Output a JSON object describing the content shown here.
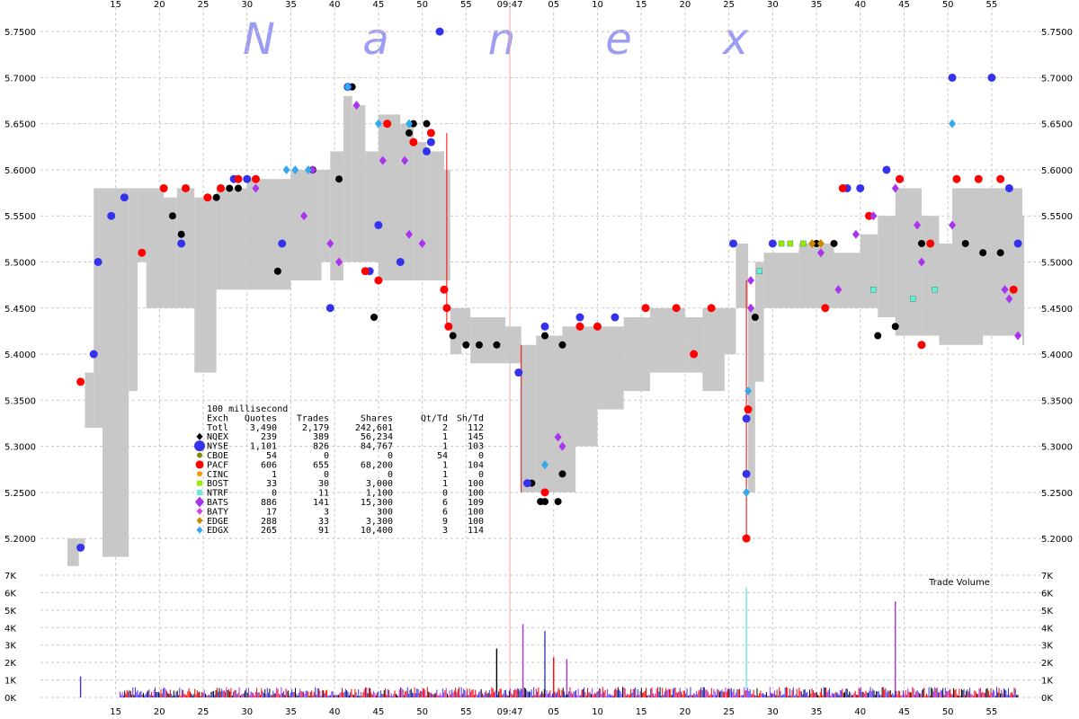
{
  "watermark": [
    "N",
    "a",
    "n",
    "e",
    "x"
  ],
  "legend": {
    "interval": "100 millisecond",
    "columns": [
      "Exch",
      "Quotes",
      "Trades",
      "Shares",
      "Qt/Td",
      "Sh/Td"
    ],
    "rows": [
      {
        "exch": "Totl",
        "quotes": "3,490",
        "trades": "2,179",
        "shares": "242,601",
        "qt_td": "2",
        "sh_td": "112",
        "color": "",
        "marker": "none"
      },
      {
        "exch": "NQEX",
        "quotes": "239",
        "trades": "389",
        "shares": "56,234",
        "qt_td": "1",
        "sh_td": "145",
        "color": "#000000",
        "marker": "diamond-small"
      },
      {
        "exch": "NYSE",
        "quotes": "1,101",
        "trades": "826",
        "shares": "84,767",
        "qt_td": "1",
        "sh_td": "103",
        "color": "#3333ee",
        "marker": "circle-large"
      },
      {
        "exch": "CBOE",
        "quotes": "54",
        "trades": "0",
        "shares": "0",
        "qt_td": "54",
        "sh_td": "0",
        "color": "#888800",
        "marker": "circle-small"
      },
      {
        "exch": "PACF",
        "quotes": "606",
        "trades": "655",
        "shares": "68,200",
        "qt_td": "1",
        "sh_td": "104",
        "color": "#ff0000",
        "marker": "circle"
      },
      {
        "exch": "CINC",
        "quotes": "1",
        "trades": "0",
        "shares": "0",
        "qt_td": "1",
        "sh_td": "0",
        "color": "#ff9900",
        "marker": "circle-small"
      },
      {
        "exch": "BOST",
        "quotes": "33",
        "trades": "30",
        "shares": "3,000",
        "qt_td": "1",
        "sh_td": "100",
        "color": "#99ee00",
        "marker": "square"
      },
      {
        "exch": "NTRF",
        "quotes": "0",
        "trades": "11",
        "shares": "1,100",
        "qt_td": "0",
        "sh_td": "100",
        "color": "#66eedd",
        "marker": "square"
      },
      {
        "exch": "BATS",
        "quotes": "886",
        "trades": "141",
        "shares": "15,300",
        "qt_td": "6",
        "sh_td": "109",
        "color": "#aa33ee",
        "marker": "diamond"
      },
      {
        "exch": "BATY",
        "quotes": "17",
        "trades": "3",
        "shares": "300",
        "qt_td": "6",
        "sh_td": "100",
        "color": "#dd44dd",
        "marker": "diamond-small"
      },
      {
        "exch": "EDGE",
        "quotes": "288",
        "trades": "33",
        "shares": "3,300",
        "qt_td": "9",
        "sh_td": "100",
        "color": "#cc8800",
        "marker": "diamond-small"
      },
      {
        "exch": "EDGX",
        "quotes": "265",
        "trades": "91",
        "shares": "10,400",
        "qt_td": "3",
        "sh_td": "114",
        "color": "#33aaee",
        "marker": "diamond-small"
      }
    ]
  },
  "chart_data": {
    "type": "scatter",
    "x_unit": "seconds from 09:46:00",
    "x_range": [
      9.5,
      118.5
    ],
    "x_ticks": [
      {
        "t": 15,
        "label": "15"
      },
      {
        "t": 20,
        "label": "20"
      },
      {
        "t": 25,
        "label": "25"
      },
      {
        "t": 30,
        "label": "30"
      },
      {
        "t": 35,
        "label": "35"
      },
      {
        "t": 40,
        "label": "40"
      },
      {
        "t": 45,
        "label": "45"
      },
      {
        "t": 50,
        "label": "50"
      },
      {
        "t": 55,
        "label": "55"
      },
      {
        "t": 60,
        "label": "09:47"
      },
      {
        "t": 65,
        "label": "05"
      },
      {
        "t": 70,
        "label": "10"
      },
      {
        "t": 75,
        "label": "15"
      },
      {
        "t": 80,
        "label": "20"
      },
      {
        "t": 85,
        "label": "25"
      },
      {
        "t": 90,
        "label": "30"
      },
      {
        "t": 95,
        "label": "35"
      },
      {
        "t": 100,
        "label": "40"
      },
      {
        "t": 105,
        "label": "45"
      },
      {
        "t": 110,
        "label": "50"
      },
      {
        "t": 115,
        "label": "55"
      }
    ],
    "price_axis": {
      "range": [
        5.165,
        5.755
      ],
      "ticks": [
        "5.2000",
        "5.2500",
        "5.3000",
        "5.3500",
        "5.4000",
        "5.4500",
        "5.5000",
        "5.5500",
        "5.6000",
        "5.6500",
        "5.7000",
        "5.7500"
      ]
    },
    "volume_axis": {
      "title": "Trade Volume",
      "range": [
        0,
        7000
      ],
      "ticks": [
        "0K",
        "1K",
        "2K",
        "3K",
        "4K",
        "5K",
        "6K",
        "7K"
      ]
    },
    "grid": true,
    "nbbo_band": [
      {
        "t": 9.5,
        "lo": 5.17,
        "hi": 5.2
      },
      {
        "t": 10.8,
        "lo": 5.19,
        "hi": 5.2
      },
      {
        "t": 11.5,
        "lo": 5.32,
        "hi": 5.38
      },
      {
        "t": 12.5,
        "lo": 5.32,
        "hi": 5.58
      },
      {
        "t": 13.5,
        "lo": 5.18,
        "hi": 5.58
      },
      {
        "t": 16.5,
        "lo": 5.36,
        "hi": 5.58
      },
      {
        "t": 17.5,
        "lo": 5.5,
        "hi": 5.58
      },
      {
        "t": 18.5,
        "lo": 5.45,
        "hi": 5.58
      },
      {
        "t": 20.5,
        "lo": 5.45,
        "hi": 5.57
      },
      {
        "t": 22.0,
        "lo": 5.45,
        "hi": 5.58
      },
      {
        "t": 24.0,
        "lo": 5.38,
        "hi": 5.57
      },
      {
        "t": 26.5,
        "lo": 5.47,
        "hi": 5.58
      },
      {
        "t": 30.0,
        "lo": 5.47,
        "hi": 5.59
      },
      {
        "t": 33.0,
        "lo": 5.47,
        "hi": 5.59
      },
      {
        "t": 35.0,
        "lo": 5.48,
        "hi": 5.6
      },
      {
        "t": 38.5,
        "lo": 5.5,
        "hi": 5.6
      },
      {
        "t": 39.5,
        "lo": 5.48,
        "hi": 5.62
      },
      {
        "t": 41.0,
        "lo": 5.5,
        "hi": 5.68
      },
      {
        "t": 42.0,
        "lo": 5.5,
        "hi": 5.67
      },
      {
        "t": 43.5,
        "lo": 5.5,
        "hi": 5.62
      },
      {
        "t": 45.0,
        "lo": 5.48,
        "hi": 5.66
      },
      {
        "t": 47.5,
        "lo": 5.48,
        "hi": 5.65
      },
      {
        "t": 49.0,
        "lo": 5.48,
        "hi": 5.63
      },
      {
        "t": 50.5,
        "lo": 5.48,
        "hi": 5.62
      },
      {
        "t": 52.5,
        "lo": 5.48,
        "hi": 5.6
      },
      {
        "t": 53.2,
        "lo": 5.4,
        "hi": 5.45
      },
      {
        "t": 54.5,
        "lo": 5.41,
        "hi": 5.45
      },
      {
        "t": 55.5,
        "lo": 5.39,
        "hi": 5.44
      },
      {
        "t": 59.5,
        "lo": 5.39,
        "hi": 5.43
      },
      {
        "t": 61.3,
        "lo": 5.25,
        "hi": 5.41
      },
      {
        "t": 63.0,
        "lo": 5.25,
        "hi": 5.42
      },
      {
        "t": 66.0,
        "lo": 5.25,
        "hi": 5.43
      },
      {
        "t": 67.5,
        "lo": 5.3,
        "hi": 5.43
      },
      {
        "t": 70.0,
        "lo": 5.34,
        "hi": 5.43
      },
      {
        "t": 73.0,
        "lo": 5.36,
        "hi": 5.44
      },
      {
        "t": 76.0,
        "lo": 5.38,
        "hi": 5.45
      },
      {
        "t": 80.0,
        "lo": 5.38,
        "hi": 5.44
      },
      {
        "t": 82.0,
        "lo": 5.36,
        "hi": 5.45
      },
      {
        "t": 84.5,
        "lo": 5.4,
        "hi": 5.45
      },
      {
        "t": 85.8,
        "lo": 5.45,
        "hi": 5.52
      },
      {
        "t": 87.2,
        "lo": 5.25,
        "hi": 5.45
      },
      {
        "t": 88.0,
        "lo": 5.37,
        "hi": 5.5
      },
      {
        "t": 89.0,
        "lo": 5.45,
        "hi": 5.51
      },
      {
        "t": 93.0,
        "lo": 5.45,
        "hi": 5.52
      },
      {
        "t": 97.0,
        "lo": 5.45,
        "hi": 5.51
      },
      {
        "t": 100.0,
        "lo": 5.45,
        "hi": 5.53
      },
      {
        "t": 102.0,
        "lo": 5.44,
        "hi": 5.55
      },
      {
        "t": 104.0,
        "lo": 5.42,
        "hi": 5.58
      },
      {
        "t": 107.0,
        "lo": 5.42,
        "hi": 5.55
      },
      {
        "t": 109.0,
        "lo": 5.41,
        "hi": 5.52
      },
      {
        "t": 110.5,
        "lo": 5.41,
        "hi": 5.58
      },
      {
        "t": 114.0,
        "lo": 5.42,
        "hi": 5.58
      },
      {
        "t": 118.5,
        "lo": 5.41,
        "hi": 5.55
      }
    ],
    "series": [
      {
        "name": "NQEX",
        "color": "#000000",
        "marker": "dot",
        "points": [
          [
            21.5,
            5.55
          ],
          [
            22.5,
            5.53
          ],
          [
            26.5,
            5.57
          ],
          [
            28.0,
            5.58
          ],
          [
            29.0,
            5.58
          ],
          [
            33.5,
            5.49
          ],
          [
            37.5,
            5.6
          ],
          [
            40.5,
            5.59
          ],
          [
            42.0,
            5.69
          ],
          [
            44.5,
            5.44
          ],
          [
            48.5,
            5.64
          ],
          [
            49.0,
            5.65
          ],
          [
            50.5,
            5.65
          ],
          [
            53.5,
            5.42
          ],
          [
            55.0,
            5.41
          ],
          [
            56.5,
            5.41
          ],
          [
            58.5,
            5.41
          ],
          [
            62.5,
            5.26
          ],
          [
            63.5,
            5.24
          ],
          [
            64.0,
            5.24
          ],
          [
            65.5,
            5.24
          ],
          [
            66.0,
            5.27
          ],
          [
            64.0,
            5.42
          ],
          [
            66.0,
            5.41
          ],
          [
            88.0,
            5.44
          ],
          [
            90.0,
            5.52
          ],
          [
            95.0,
            5.52
          ],
          [
            97.0,
            5.52
          ],
          [
            102.0,
            5.42
          ],
          [
            104.0,
            5.43
          ],
          [
            107.0,
            5.52
          ],
          [
            112.0,
            5.52
          ],
          [
            114.0,
            5.51
          ],
          [
            116.0,
            5.51
          ]
        ]
      },
      {
        "name": "NYSE",
        "color": "#3333ee",
        "marker": "circle",
        "points": [
          [
            11.0,
            5.19
          ],
          [
            12.5,
            5.4
          ],
          [
            13.0,
            5.5
          ],
          [
            14.5,
            5.55
          ],
          [
            16.0,
            5.57
          ],
          [
            22.5,
            5.52
          ],
          [
            28.5,
            5.59
          ],
          [
            30.0,
            5.59
          ],
          [
            34.0,
            5.52
          ],
          [
            39.5,
            5.45
          ],
          [
            41.5,
            5.69
          ],
          [
            44.0,
            5.49
          ],
          [
            45.0,
            5.54
          ],
          [
            47.5,
            5.5
          ],
          [
            50.5,
            5.62
          ],
          [
            51.0,
            5.63
          ],
          [
            52.0,
            5.75
          ],
          [
            61.0,
            5.38
          ],
          [
            62.0,
            5.26
          ],
          [
            64.0,
            5.43
          ],
          [
            68.0,
            5.44
          ],
          [
            72.0,
            5.44
          ],
          [
            85.5,
            5.52
          ],
          [
            87.0,
            5.27
          ],
          [
            87.0,
            5.33
          ],
          [
            90.0,
            5.52
          ],
          [
            98.5,
            5.58
          ],
          [
            100.0,
            5.58
          ],
          [
            103.0,
            5.6
          ],
          [
            104.5,
            5.59
          ],
          [
            110.5,
            5.7
          ],
          [
            115.0,
            5.7
          ],
          [
            117.0,
            5.58
          ],
          [
            118.0,
            5.52
          ]
        ]
      },
      {
        "name": "PACF",
        "color": "#ff0000",
        "marker": "circle",
        "points": [
          [
            11.0,
            5.37
          ],
          [
            18.0,
            5.51
          ],
          [
            20.5,
            5.58
          ],
          [
            23.0,
            5.58
          ],
          [
            25.5,
            5.57
          ],
          [
            27.0,
            5.58
          ],
          [
            29.0,
            5.59
          ],
          [
            31.0,
            5.59
          ],
          [
            43.5,
            5.49
          ],
          [
            45.0,
            5.48
          ],
          [
            46.0,
            5.65
          ],
          [
            49.0,
            5.63
          ],
          [
            51.0,
            5.64
          ],
          [
            52.5,
            5.47
          ],
          [
            52.8,
            5.45
          ],
          [
            53.0,
            5.43
          ],
          [
            64.0,
            5.25
          ],
          [
            68.0,
            5.43
          ],
          [
            70.0,
            5.43
          ],
          [
            75.5,
            5.45
          ],
          [
            79.0,
            5.45
          ],
          [
            81.0,
            5.4
          ],
          [
            83.0,
            5.45
          ],
          [
            87.0,
            5.2
          ],
          [
            87.2,
            5.34
          ],
          [
            96.0,
            5.45
          ],
          [
            98.0,
            5.58
          ],
          [
            101.0,
            5.55
          ],
          [
            104.5,
            5.59
          ],
          [
            107.0,
            5.41
          ],
          [
            108.0,
            5.52
          ],
          [
            111.0,
            5.59
          ],
          [
            113.5,
            5.59
          ],
          [
            116.0,
            5.59
          ],
          [
            117.5,
            5.47
          ]
        ]
      },
      {
        "name": "BATS",
        "color": "#aa33ee",
        "marker": "diamond",
        "points": [
          [
            31.0,
            5.58
          ],
          [
            36.5,
            5.55
          ],
          [
            37.5,
            5.6
          ],
          [
            39.5,
            5.52
          ],
          [
            40.5,
            5.5
          ],
          [
            42.5,
            5.67
          ],
          [
            45.5,
            5.61
          ],
          [
            48.0,
            5.61
          ],
          [
            48.5,
            5.53
          ],
          [
            50.0,
            5.52
          ],
          [
            65.5,
            5.31
          ],
          [
            66.0,
            5.3
          ],
          [
            87.5,
            5.45
          ],
          [
            87.5,
            5.48
          ],
          [
            95.5,
            5.51
          ],
          [
            97.5,
            5.47
          ],
          [
            99.5,
            5.53
          ],
          [
            101.5,
            5.55
          ],
          [
            104.0,
            5.58
          ],
          [
            106.5,
            5.54
          ],
          [
            107.0,
            5.5
          ],
          [
            110.5,
            5.54
          ],
          [
            116.5,
            5.47
          ],
          [
            117.0,
            5.46
          ],
          [
            118.0,
            5.42
          ]
        ]
      },
      {
        "name": "BOST",
        "color": "#99ee00",
        "marker": "square",
        "points": [
          [
            91.0,
            5.52
          ],
          [
            92.0,
            5.52
          ],
          [
            93.5,
            5.52
          ]
        ]
      },
      {
        "name": "NTRF",
        "color": "#66eedd",
        "marker": "square",
        "points": [
          [
            88.5,
            5.49
          ],
          [
            101.5,
            5.47
          ],
          [
            106.0,
            5.46
          ],
          [
            108.5,
            5.47
          ]
        ]
      },
      {
        "name": "EDGX",
        "color": "#33aaee",
        "marker": "diamond",
        "points": [
          [
            34.5,
            5.6
          ],
          [
            35.5,
            5.6
          ],
          [
            37.0,
            5.6
          ],
          [
            41.5,
            5.69
          ],
          [
            45.0,
            5.65
          ],
          [
            48.5,
            5.65
          ],
          [
            64.0,
            5.28
          ],
          [
            87.0,
            5.25
          ],
          [
            87.2,
            5.36
          ],
          [
            110.5,
            5.65
          ]
        ]
      },
      {
        "name": "EDGE",
        "color": "#cc8800",
        "marker": "diamond",
        "points": [
          [
            94.5,
            5.52
          ],
          [
            95.5,
            5.52
          ]
        ]
      }
    ],
    "volume_spikes": [
      {
        "t": 11.0,
        "v": 1200
      },
      {
        "t": 58.5,
        "v": 2800
      },
      {
        "t": 61.5,
        "v": 4200
      },
      {
        "t": 64.0,
        "v": 3800
      },
      {
        "t": 65.0,
        "v": 2300
      },
      {
        "t": 66.5,
        "v": 2200
      },
      {
        "t": 87.0,
        "v": 6300
      },
      {
        "t": 104.0,
        "v": 5500
      }
    ]
  }
}
